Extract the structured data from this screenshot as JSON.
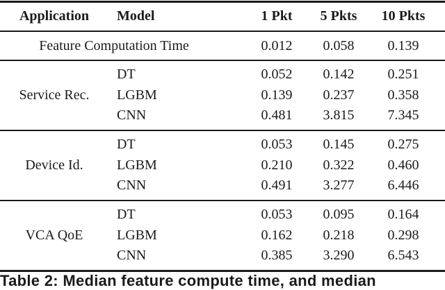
{
  "table": {
    "headers": [
      "Application",
      "Model",
      "1 Pkt",
      "5 Pkts",
      "10 Pkts"
    ],
    "feature_row": {
      "label": "Feature Computation Time",
      "values": [
        "0.012",
        "0.058",
        "0.139"
      ]
    },
    "groups": [
      {
        "application": "Service Rec.",
        "rows": [
          {
            "model": "DT",
            "values": [
              "0.052",
              "0.142",
              "0.251"
            ]
          },
          {
            "model": "LGBM",
            "values": [
              "0.139",
              "0.237",
              "0.358"
            ]
          },
          {
            "model": "CNN",
            "values": [
              "0.481",
              "3.815",
              "7.345"
            ]
          }
        ]
      },
      {
        "application": "Device Id.",
        "rows": [
          {
            "model": "DT",
            "values": [
              "0.053",
              "0.145",
              "0.275"
            ]
          },
          {
            "model": "LGBM",
            "values": [
              "0.210",
              "0.322",
              "0.460"
            ]
          },
          {
            "model": "CNN",
            "values": [
              "0.491",
              "3.277",
              "6.446"
            ]
          }
        ]
      },
      {
        "application": "VCA QoE",
        "rows": [
          {
            "model": "DT",
            "values": [
              "0.053",
              "0.095",
              "0.164"
            ]
          },
          {
            "model": "LGBM",
            "values": [
              "0.162",
              "0.218",
              "0.298"
            ]
          },
          {
            "model": "CNN",
            "values": [
              "0.385",
              "3.290",
              "6.543"
            ]
          }
        ]
      }
    ]
  },
  "caption": "Table 2: Median feature compute time, and median"
}
